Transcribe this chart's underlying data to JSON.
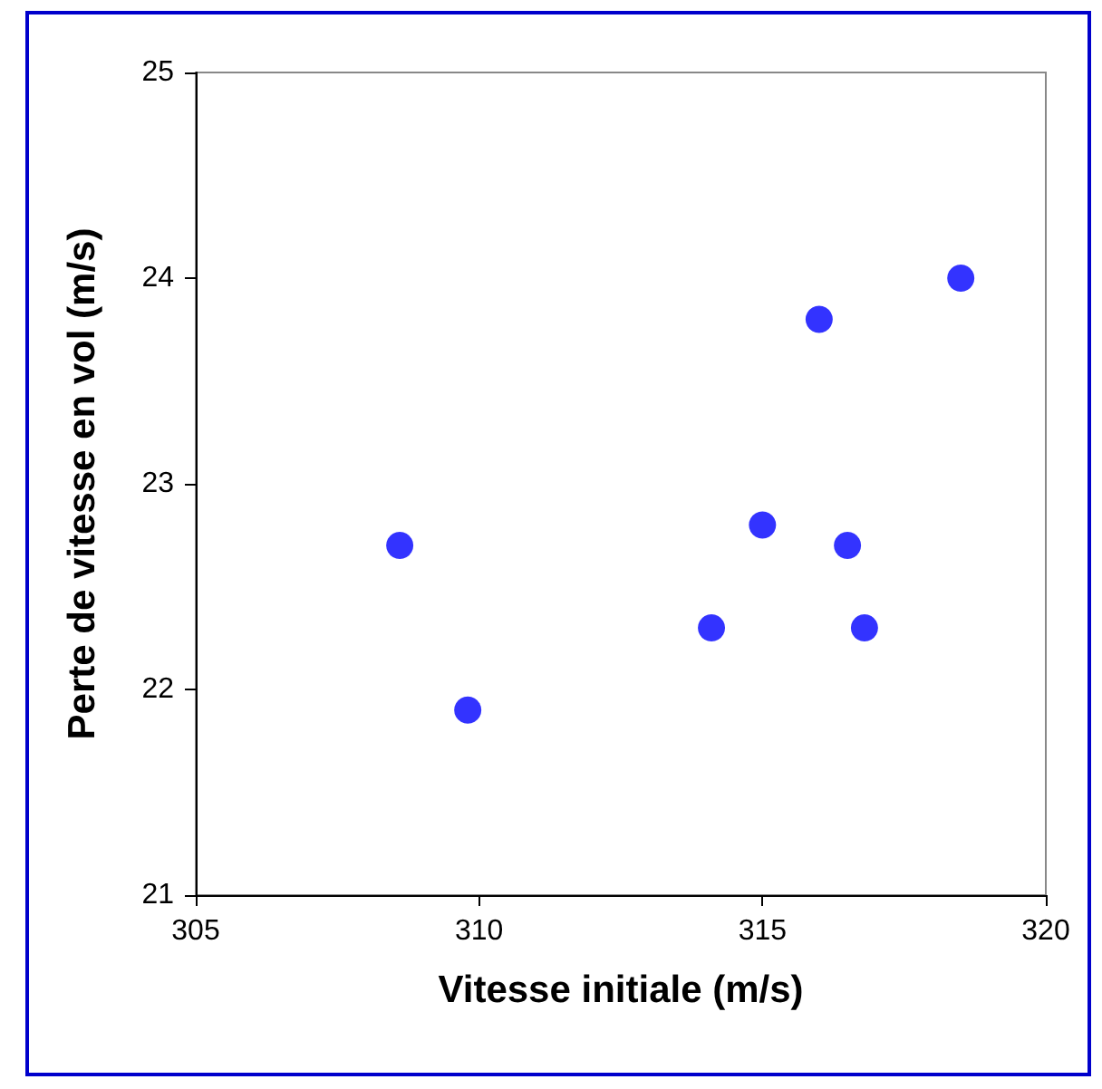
{
  "chart_data": {
    "type": "scatter",
    "xlabel": "Vitesse initiale (m/s)",
    "ylabel": "Perte de vitesse en vol (m/s)",
    "x": [
      308.6,
      309.8,
      314.1,
      315.0,
      316.0,
      316.5,
      316.8,
      318.5
    ],
    "series": [
      {
        "color": "#0000ff",
        "values": [
          22.7,
          21.9,
          22.3,
          22.8,
          23.8,
          22.7,
          22.3,
          24.0
        ]
      }
    ],
    "xlim": [
      305,
      320
    ],
    "xticks": [
      305,
      310,
      315,
      320
    ],
    "ylim": [
      21,
      25
    ],
    "yticks": [
      21,
      22,
      23,
      24,
      25
    ],
    "grid": false,
    "marker": "circle"
  }
}
